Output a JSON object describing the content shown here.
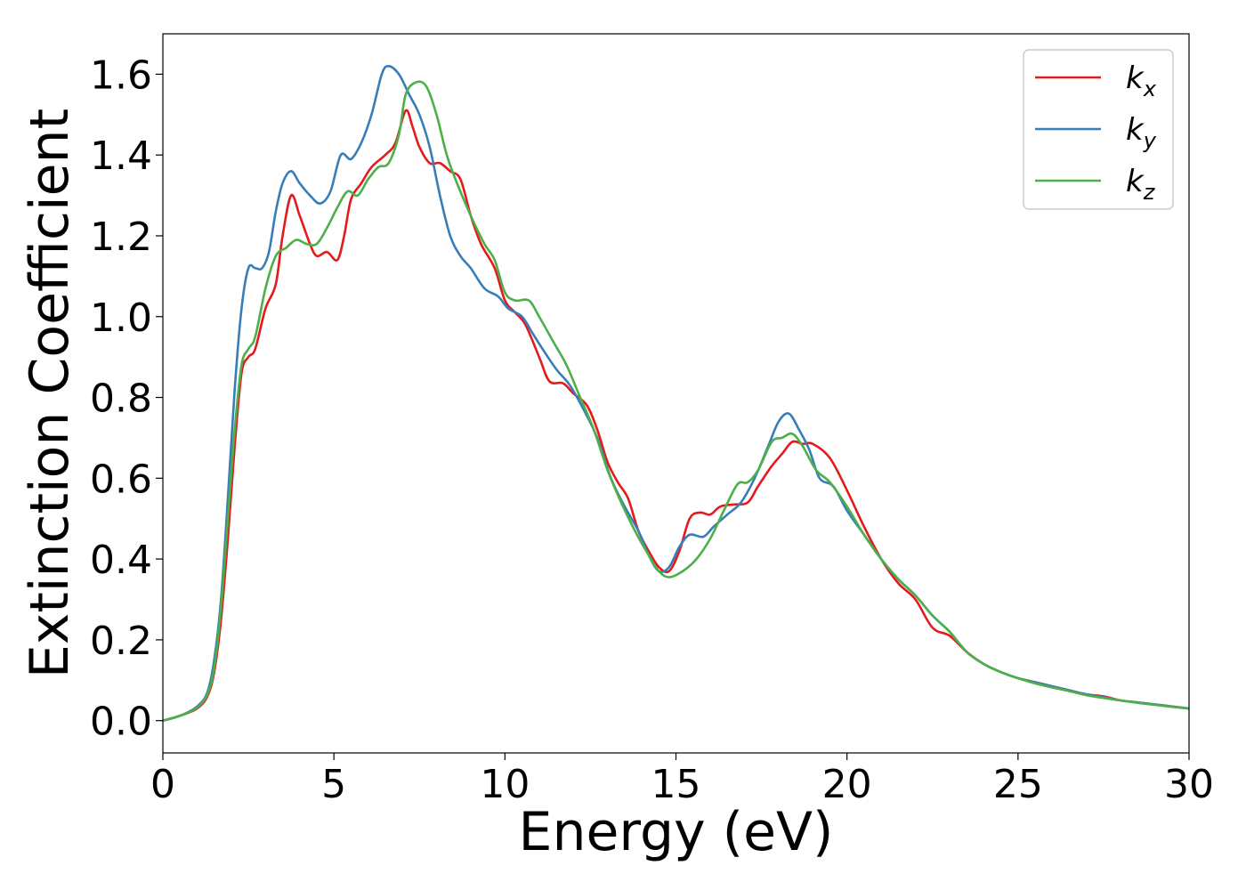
{
  "chart_data": {
    "type": "line",
    "title": "",
    "xlabel": "Energy (eV)",
    "ylabel": "Extinction Coefficient",
    "xlim": [
      0,
      30
    ],
    "ylim": [
      -0.08,
      1.7
    ],
    "xticks": [
      0,
      5,
      10,
      15,
      20,
      25,
      30
    ],
    "xtick_labels": [
      "0",
      "5",
      "10",
      "15",
      "20",
      "25",
      "30"
    ],
    "yticks": [
      0.0,
      0.2,
      0.4,
      0.6,
      0.8,
      1.0,
      1.2,
      1.4,
      1.6
    ],
    "ytick_labels": [
      "0.0",
      "0.2",
      "0.4",
      "0.6",
      "0.8",
      "1.0",
      "1.2",
      "1.4",
      "1.6"
    ],
    "grid": false,
    "legend_position": "top-right",
    "series": [
      {
        "name": "k_x",
        "label_main": "k",
        "label_sub": "x",
        "color": "#e41a1c",
        "points": [
          [
            0,
            0.0
          ],
          [
            0.5,
            0.012
          ],
          [
            1.0,
            0.03
          ],
          [
            1.3,
            0.06
          ],
          [
            1.5,
            0.12
          ],
          [
            1.7,
            0.25
          ],
          [
            1.9,
            0.45
          ],
          [
            2.1,
            0.68
          ],
          [
            2.3,
            0.86
          ],
          [
            2.5,
            0.9
          ],
          [
            2.7,
            0.92
          ],
          [
            3.0,
            1.02
          ],
          [
            3.3,
            1.08
          ],
          [
            3.5,
            1.2
          ],
          [
            3.75,
            1.3
          ],
          [
            4.0,
            1.25
          ],
          [
            4.3,
            1.18
          ],
          [
            4.5,
            1.15
          ],
          [
            4.8,
            1.16
          ],
          [
            5.1,
            1.14
          ],
          [
            5.3,
            1.2
          ],
          [
            5.5,
            1.29
          ],
          [
            5.8,
            1.33
          ],
          [
            6.1,
            1.37
          ],
          [
            6.5,
            1.4
          ],
          [
            6.8,
            1.43
          ],
          [
            7.1,
            1.51
          ],
          [
            7.3,
            1.47
          ],
          [
            7.5,
            1.42
          ],
          [
            7.8,
            1.38
          ],
          [
            8.1,
            1.38
          ],
          [
            8.4,
            1.36
          ],
          [
            8.7,
            1.34
          ],
          [
            9.0,
            1.25
          ],
          [
            9.3,
            1.18
          ],
          [
            9.7,
            1.12
          ],
          [
            10.0,
            1.04
          ],
          [
            10.3,
            1.01
          ],
          [
            10.6,
            0.98
          ],
          [
            11.0,
            0.9
          ],
          [
            11.3,
            0.84
          ],
          [
            11.7,
            0.835
          ],
          [
            12.0,
            0.81
          ],
          [
            12.4,
            0.78
          ],
          [
            12.7,
            0.72
          ],
          [
            13.0,
            0.64
          ],
          [
            13.3,
            0.59
          ],
          [
            13.6,
            0.55
          ],
          [
            13.9,
            0.47
          ],
          [
            14.2,
            0.42
          ],
          [
            14.5,
            0.38
          ],
          [
            14.8,
            0.37
          ],
          [
            15.1,
            0.42
          ],
          [
            15.4,
            0.5
          ],
          [
            15.7,
            0.515
          ],
          [
            16.0,
            0.51
          ],
          [
            16.3,
            0.53
          ],
          [
            16.7,
            0.535
          ],
          [
            17.1,
            0.54
          ],
          [
            17.4,
            0.58
          ],
          [
            17.8,
            0.63
          ],
          [
            18.1,
            0.66
          ],
          [
            18.4,
            0.69
          ],
          [
            18.7,
            0.685
          ],
          [
            19.0,
            0.685
          ],
          [
            19.5,
            0.65
          ],
          [
            20.0,
            0.57
          ],
          [
            20.5,
            0.48
          ],
          [
            21.0,
            0.4
          ],
          [
            21.5,
            0.34
          ],
          [
            22.0,
            0.3
          ],
          [
            22.5,
            0.23
          ],
          [
            23.0,
            0.21
          ],
          [
            23.5,
            0.17
          ],
          [
            24.0,
            0.14
          ],
          [
            24.5,
            0.12
          ],
          [
            25.0,
            0.105
          ],
          [
            25.5,
            0.095
          ],
          [
            26.0,
            0.085
          ],
          [
            26.5,
            0.075
          ],
          [
            27.0,
            0.065
          ],
          [
            27.5,
            0.06
          ],
          [
            28.0,
            0.05
          ],
          [
            28.5,
            0.045
          ],
          [
            29.0,
            0.04
          ],
          [
            29.5,
            0.035
          ],
          [
            30.0,
            0.03
          ]
        ]
      },
      {
        "name": "k_y",
        "label_main": "k",
        "label_sub": "y",
        "color": "#377eb8",
        "points": [
          [
            0,
            0.0
          ],
          [
            0.5,
            0.012
          ],
          [
            1.0,
            0.035
          ],
          [
            1.3,
            0.07
          ],
          [
            1.5,
            0.15
          ],
          [
            1.7,
            0.3
          ],
          [
            1.9,
            0.55
          ],
          [
            2.1,
            0.82
          ],
          [
            2.3,
            1.02
          ],
          [
            2.5,
            1.12
          ],
          [
            2.7,
            1.12
          ],
          [
            2.9,
            1.12
          ],
          [
            3.1,
            1.16
          ],
          [
            3.3,
            1.26
          ],
          [
            3.5,
            1.33
          ],
          [
            3.75,
            1.36
          ],
          [
            4.0,
            1.33
          ],
          [
            4.3,
            1.3
          ],
          [
            4.6,
            1.28
          ],
          [
            4.9,
            1.31
          ],
          [
            5.2,
            1.4
          ],
          [
            5.5,
            1.39
          ],
          [
            5.8,
            1.43
          ],
          [
            6.1,
            1.5
          ],
          [
            6.4,
            1.6
          ],
          [
            6.6,
            1.62
          ],
          [
            6.9,
            1.6
          ],
          [
            7.2,
            1.55
          ],
          [
            7.5,
            1.5
          ],
          [
            7.8,
            1.42
          ],
          [
            8.1,
            1.3
          ],
          [
            8.4,
            1.2
          ],
          [
            8.7,
            1.15
          ],
          [
            9.0,
            1.12
          ],
          [
            9.4,
            1.07
          ],
          [
            9.8,
            1.05
          ],
          [
            10.1,
            1.02
          ],
          [
            10.5,
            1.0
          ],
          [
            10.8,
            0.96
          ],
          [
            11.1,
            0.92
          ],
          [
            11.5,
            0.87
          ],
          [
            11.9,
            0.83
          ],
          [
            12.3,
            0.77
          ],
          [
            12.7,
            0.7
          ],
          [
            13.1,
            0.6
          ],
          [
            13.5,
            0.53
          ],
          [
            13.9,
            0.47
          ],
          [
            14.2,
            0.41
          ],
          [
            14.5,
            0.37
          ],
          [
            14.8,
            0.38
          ],
          [
            15.1,
            0.43
          ],
          [
            15.4,
            0.46
          ],
          [
            15.8,
            0.455
          ],
          [
            16.1,
            0.48
          ],
          [
            16.5,
            0.51
          ],
          [
            16.9,
            0.54
          ],
          [
            17.3,
            0.6
          ],
          [
            17.7,
            0.68
          ],
          [
            18.0,
            0.74
          ],
          [
            18.3,
            0.76
          ],
          [
            18.6,
            0.72
          ],
          [
            18.9,
            0.67
          ],
          [
            19.2,
            0.6
          ],
          [
            19.6,
            0.58
          ],
          [
            20.0,
            0.52
          ],
          [
            20.5,
            0.46
          ],
          [
            21.0,
            0.4
          ],
          [
            21.5,
            0.35
          ],
          [
            22.0,
            0.31
          ],
          [
            22.5,
            0.26
          ],
          [
            23.0,
            0.22
          ],
          [
            23.5,
            0.17
          ],
          [
            24.0,
            0.14
          ],
          [
            24.5,
            0.12
          ],
          [
            25.0,
            0.105
          ],
          [
            25.5,
            0.095
          ],
          [
            26.0,
            0.085
          ],
          [
            26.5,
            0.075
          ],
          [
            27.0,
            0.065
          ],
          [
            27.5,
            0.058
          ],
          [
            28.0,
            0.05
          ],
          [
            28.5,
            0.045
          ],
          [
            29.0,
            0.04
          ],
          [
            29.5,
            0.035
          ],
          [
            30.0,
            0.03
          ]
        ]
      },
      {
        "name": "k_z",
        "label_main": "k",
        "label_sub": "z",
        "color": "#4daf4a",
        "points": [
          [
            0,
            0.0
          ],
          [
            0.5,
            0.012
          ],
          [
            1.0,
            0.032
          ],
          [
            1.3,
            0.065
          ],
          [
            1.5,
            0.13
          ],
          [
            1.7,
            0.28
          ],
          [
            1.9,
            0.5
          ],
          [
            2.1,
            0.72
          ],
          [
            2.3,
            0.88
          ],
          [
            2.5,
            0.92
          ],
          [
            2.7,
            0.95
          ],
          [
            3.0,
            1.07
          ],
          [
            3.3,
            1.15
          ],
          [
            3.6,
            1.17
          ],
          [
            3.9,
            1.19
          ],
          [
            4.2,
            1.18
          ],
          [
            4.5,
            1.18
          ],
          [
            4.8,
            1.22
          ],
          [
            5.1,
            1.27
          ],
          [
            5.4,
            1.31
          ],
          [
            5.7,
            1.3
          ],
          [
            6.0,
            1.34
          ],
          [
            6.3,
            1.37
          ],
          [
            6.6,
            1.38
          ],
          [
            6.9,
            1.45
          ],
          [
            7.1,
            1.55
          ],
          [
            7.4,
            1.58
          ],
          [
            7.7,
            1.57
          ],
          [
            8.0,
            1.5
          ],
          [
            8.3,
            1.4
          ],
          [
            8.6,
            1.33
          ],
          [
            9.0,
            1.25
          ],
          [
            9.4,
            1.18
          ],
          [
            9.7,
            1.14
          ],
          [
            10.0,
            1.06
          ],
          [
            10.3,
            1.04
          ],
          [
            10.7,
            1.04
          ],
          [
            11.0,
            1.0
          ],
          [
            11.4,
            0.94
          ],
          [
            11.8,
            0.88
          ],
          [
            12.2,
            0.8
          ],
          [
            12.6,
            0.72
          ],
          [
            13.0,
            0.62
          ],
          [
            13.4,
            0.54
          ],
          [
            13.8,
            0.47
          ],
          [
            14.2,
            0.41
          ],
          [
            14.5,
            0.37
          ],
          [
            14.8,
            0.355
          ],
          [
            15.2,
            0.37
          ],
          [
            15.6,
            0.4
          ],
          [
            16.0,
            0.45
          ],
          [
            16.4,
            0.52
          ],
          [
            16.8,
            0.585
          ],
          [
            17.1,
            0.59
          ],
          [
            17.4,
            0.62
          ],
          [
            17.8,
            0.69
          ],
          [
            18.1,
            0.7
          ],
          [
            18.4,
            0.71
          ],
          [
            18.7,
            0.68
          ],
          [
            19.1,
            0.62
          ],
          [
            19.5,
            0.59
          ],
          [
            20.0,
            0.53
          ],
          [
            20.5,
            0.46
          ],
          [
            21.0,
            0.4
          ],
          [
            21.5,
            0.35
          ],
          [
            22.0,
            0.31
          ],
          [
            22.5,
            0.26
          ],
          [
            23.0,
            0.22
          ],
          [
            23.5,
            0.17
          ],
          [
            24.0,
            0.14
          ],
          [
            24.5,
            0.12
          ],
          [
            25.0,
            0.105
          ],
          [
            25.5,
            0.092
          ],
          [
            26.0,
            0.082
          ],
          [
            26.5,
            0.073
          ],
          [
            27.0,
            0.063
          ],
          [
            27.5,
            0.056
          ],
          [
            28.0,
            0.05
          ],
          [
            28.5,
            0.044
          ],
          [
            29.0,
            0.039
          ],
          [
            29.5,
            0.034
          ],
          [
            30.0,
            0.03
          ]
        ]
      }
    ]
  }
}
